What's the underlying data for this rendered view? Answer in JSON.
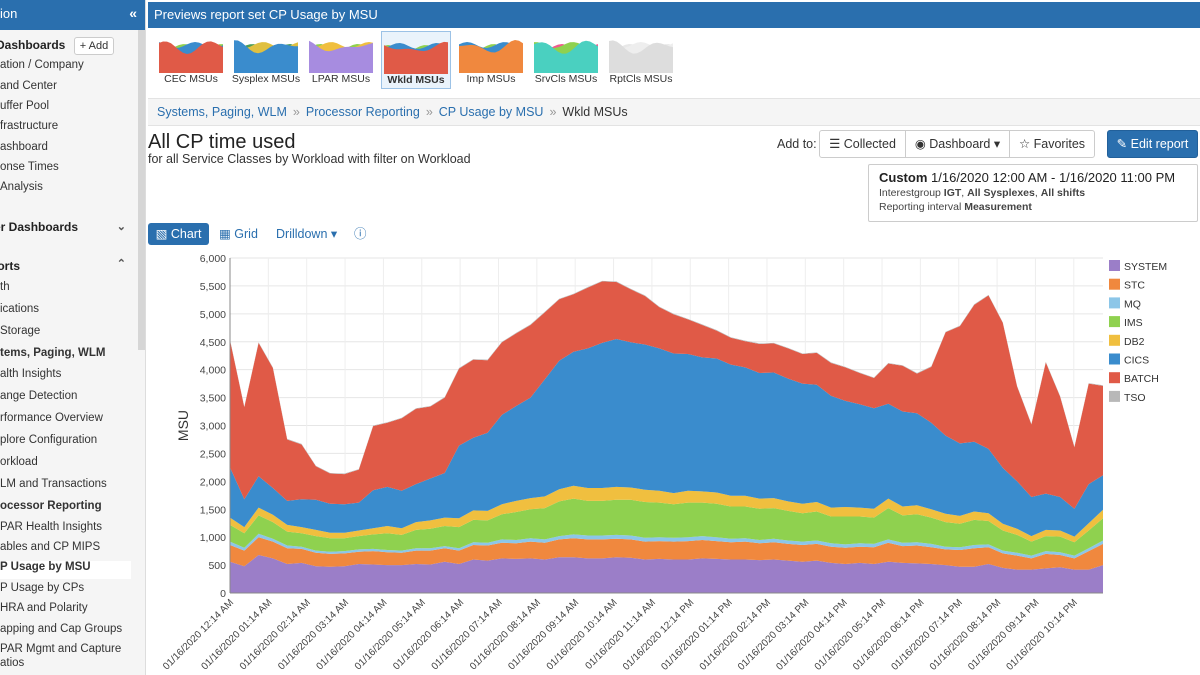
{
  "sidebar": {
    "header": "ion",
    "collapse": "«",
    "dashboards": "Dashboards",
    "add": "+ Add",
    "items": [
      "ation / Company",
      "and Center",
      "uffer Pool",
      "frastructure",
      "ashboard",
      "onse Times",
      "Analysis"
    ],
    "user_dashboards": "er Dashboards",
    "reports": "oorts",
    "report_items": [
      "th",
      "ications",
      " Storage",
      "tems, Paging, WLM",
      "alth Insights",
      "ange Detection",
      "rformance Overview",
      "plore Configuration",
      "orkload",
      "LM and Transactions",
      "ocessor Reporting",
      "PAR Health Insights",
      "ables and CP MIPS",
      "P Usage by MSU",
      "P Usage by CPs",
      "HRA and Polarity",
      "apping and Cap Groups",
      "PAR Mgmt and Capture",
      "atios"
    ]
  },
  "topbar": {
    "title": "Previews report set CP Usage by MSU"
  },
  "thumbnails": [
    {
      "label": "CEC MSUs"
    },
    {
      "label": "Sysplex MSUs"
    },
    {
      "label": "LPAR MSUs"
    },
    {
      "label": "Wkld MSUs"
    },
    {
      "label": "Imp MSUs"
    },
    {
      "label": "SrvCls MSUs"
    },
    {
      "label": "RptCls MSUs"
    }
  ],
  "breadcrumb": [
    "Systems, Paging, WLM",
    "Processor Reporting",
    "CP Usage by MSU",
    "Wkld MSUs"
  ],
  "page": {
    "title": "All CP time used",
    "subtitle": "for all Service Classes by Workload with filter on Workload"
  },
  "actions": {
    "add_to": "Add to:",
    "collected": "Collected",
    "dashboard": "Dashboard",
    "favorites": "Favorites",
    "edit_report": "Edit report"
  },
  "custom": {
    "label": "Custom",
    "range": "1/16/2020 12:00 AM - 1/16/2020 11:00 PM",
    "line2_prefix": "Interestgroup ",
    "line2_ig": "IGT",
    "line2_mid": ", ",
    "line2_sys": "All Sysplexes",
    "line2_sep": ", ",
    "line2_shift": "All shifts",
    "line3_prefix": "Reporting interval ",
    "line3_val": "Measurement"
  },
  "tabs": {
    "chart": "Chart",
    "grid": "Grid",
    "drilldown": "Drilldown"
  },
  "colors": {
    "accent": "#2a6fae",
    "BATCH": "#e05a47",
    "CICS": "#3a8ccd",
    "DB2": "#f0bf3f",
    "IMS": "#8fd14f",
    "MQ": "#8cc6e8",
    "STC": "#f0883e",
    "SYSTEM": "#9b7ec8",
    "TSO": "#b8b8b8"
  },
  "chart_data": {
    "type": "area",
    "stacked": true,
    "ylabel": "MSU",
    "xlabel": "",
    "ylim": [
      0,
      6000
    ],
    "yticks": [
      "0",
      "500",
      "1,000",
      "1,500",
      "2,000",
      "2,500",
      "3,000",
      "3,500",
      "4,000",
      "4,500",
      "5,000",
      "5,500",
      "6,000"
    ],
    "xtick_labels": [
      "01/16/2020 12:14 AM",
      "01/16/2020 01:14 AM",
      "01/16/2020 02:14 AM",
      "01/16/2020 03:14 AM",
      "01/16/2020 04:14 AM",
      "01/16/2020 05:14 AM",
      "01/16/2020 06:14 AM",
      "01/16/2020 07:14 AM",
      "01/16/2020 08:14 AM",
      "01/16/2020 09:14 AM",
      "01/16/2020 10:14 AM",
      "01/16/2020 11:14 AM",
      "01/16/2020 12:14 PM",
      "01/16/2020 01:14 PM",
      "01/16/2020 02:14 PM",
      "01/16/2020 03:14 PM",
      "01/16/2020 04:14 PM",
      "01/16/2020 05:14 PM",
      "01/16/2020 06:14 PM",
      "01/16/2020 07:14 PM",
      "01/16/2020 08:14 PM",
      "01/16/2020 09:14 PM",
      "01/16/2020 10:14 PM"
    ],
    "legend_position": "right",
    "grid": true,
    "series": [
      {
        "name": "SYSTEM",
        "values": [
          560,
          480,
          680,
          620,
          520,
          540,
          480,
          470,
          480,
          520,
          510,
          500,
          500,
          520,
          510,
          560,
          520,
          600,
          580,
          620,
          610,
          620,
          600,
          640,
          640,
          620,
          620,
          640,
          630,
          600,
          610,
          600,
          600,
          620,
          610,
          600,
          600,
          590,
          600,
          580,
          560,
          580,
          540,
          520,
          540,
          520,
          560,
          540,
          530,
          520,
          500,
          470,
          470,
          520,
          450,
          420,
          420,
          440,
          460,
          420,
          420,
          500
        ]
      },
      {
        "name": "STC",
        "values": [
          300,
          280,
          320,
          300,
          280,
          250,
          240,
          230,
          230,
          220,
          240,
          230,
          220,
          240,
          250,
          240,
          240,
          260,
          270,
          280,
          280,
          300,
          300,
          320,
          340,
          340,
          340,
          330,
          330,
          320,
          320,
          320,
          330,
          330,
          320,
          310,
          320,
          300,
          310,
          300,
          300,
          300,
          290,
          290,
          290,
          300,
          340,
          300,
          320,
          300,
          280,
          300,
          330,
          300,
          260,
          250,
          200,
          260,
          220,
          200,
          330,
          380
        ]
      },
      {
        "name": "MQ",
        "values": [
          60,
          50,
          60,
          50,
          50,
          40,
          40,
          40,
          40,
          40,
          40,
          40,
          40,
          40,
          40,
          40,
          40,
          50,
          50,
          60,
          60,
          60,
          60,
          60,
          70,
          70,
          70,
          70,
          70,
          70,
          70,
          70,
          70,
          70,
          70,
          60,
          60,
          60,
          60,
          60,
          60,
          60,
          60,
          60,
          60,
          60,
          60,
          60,
          60,
          60,
          50,
          50,
          60,
          50,
          50,
          50,
          50,
          50,
          50,
          50,
          50,
          60
        ]
      },
      {
        "name": "IMS",
        "values": [
          300,
          260,
          330,
          300,
          250,
          240,
          260,
          240,
          230,
          240,
          260,
          300,
          280,
          330,
          350,
          360,
          380,
          400,
          400,
          450,
          500,
          520,
          560,
          620,
          640,
          620,
          620,
          630,
          640,
          640,
          620,
          600,
          620,
          600,
          600,
          580,
          570,
          560,
          550,
          530,
          510,
          520,
          480,
          500,
          480,
          470,
          560,
          490,
          500,
          470,
          440,
          420,
          450,
          420,
          360,
          320,
          250,
          270,
          280,
          240,
          320,
          400
        ]
      },
      {
        "name": "DB2",
        "values": [
          130,
          110,
          140,
          130,
          120,
          110,
          110,
          100,
          100,
          100,
          110,
          130,
          120,
          140,
          150,
          150,
          160,
          170,
          170,
          180,
          200,
          200,
          210,
          220,
          230,
          230,
          230,
          230,
          220,
          220,
          210,
          200,
          210,
          200,
          200,
          190,
          190,
          180,
          180,
          170,
          170,
          170,
          160,
          170,
          160,
          160,
          170,
          160,
          160,
          150,
          150,
          140,
          150,
          140,
          120,
          110,
          100,
          110,
          110,
          100,
          130,
          150
        ]
      },
      {
        "name": "CICS",
        "values": [
          900,
          500,
          560,
          480,
          430,
          500,
          540,
          520,
          510,
          500,
          680,
          700,
          670,
          680,
          750,
          800,
          1300,
          1300,
          1400,
          1600,
          1700,
          1800,
          2100,
          2300,
          2400,
          2500,
          2600,
          2650,
          2600,
          2600,
          2550,
          2500,
          2450,
          2400,
          2400,
          2350,
          2300,
          2250,
          2250,
          2200,
          2150,
          2100,
          2000,
          1900,
          1850,
          1800,
          1700,
          1700,
          1650,
          1550,
          1400,
          1300,
          1250,
          1150,
          1000,
          850,
          700,
          650,
          600,
          500,
          700,
          620
        ]
      },
      {
        "name": "BATCH",
        "values": [
          2280,
          1650,
          2390,
          2150,
          1100,
          980,
          600,
          540,
          540,
          590,
          1150,
          1150,
          1300,
          1350,
          1290,
          1350,
          1380,
          1400,
          1300,
          1300,
          1300,
          1300,
          1200,
          1100,
          1030,
          1090,
          1100,
          1020,
          950,
          870,
          740,
          700,
          620,
          580,
          500,
          480,
          470,
          520,
          520,
          540,
          530,
          570,
          590,
          600,
          560,
          540,
          720,
          820,
          710,
          1000,
          1850,
          2100,
          2450,
          2750,
          2600,
          1700,
          1300,
          2350,
          1800,
          1100,
          1800,
          1600
        ]
      },
      {
        "name": "TSO",
        "values": [
          10,
          10,
          10,
          10,
          10,
          10,
          10,
          10,
          10,
          10,
          10,
          10,
          10,
          10,
          10,
          10,
          10,
          10,
          10,
          10,
          10,
          10,
          10,
          10,
          10,
          10,
          10,
          10,
          10,
          10,
          10,
          10,
          10,
          10,
          10,
          10,
          10,
          10,
          10,
          10,
          10,
          10,
          10,
          10,
          10,
          10,
          10,
          10,
          10,
          10,
          10,
          10,
          10,
          10,
          10,
          10,
          10,
          10,
          10,
          10,
          10,
          10
        ]
      }
    ]
  }
}
